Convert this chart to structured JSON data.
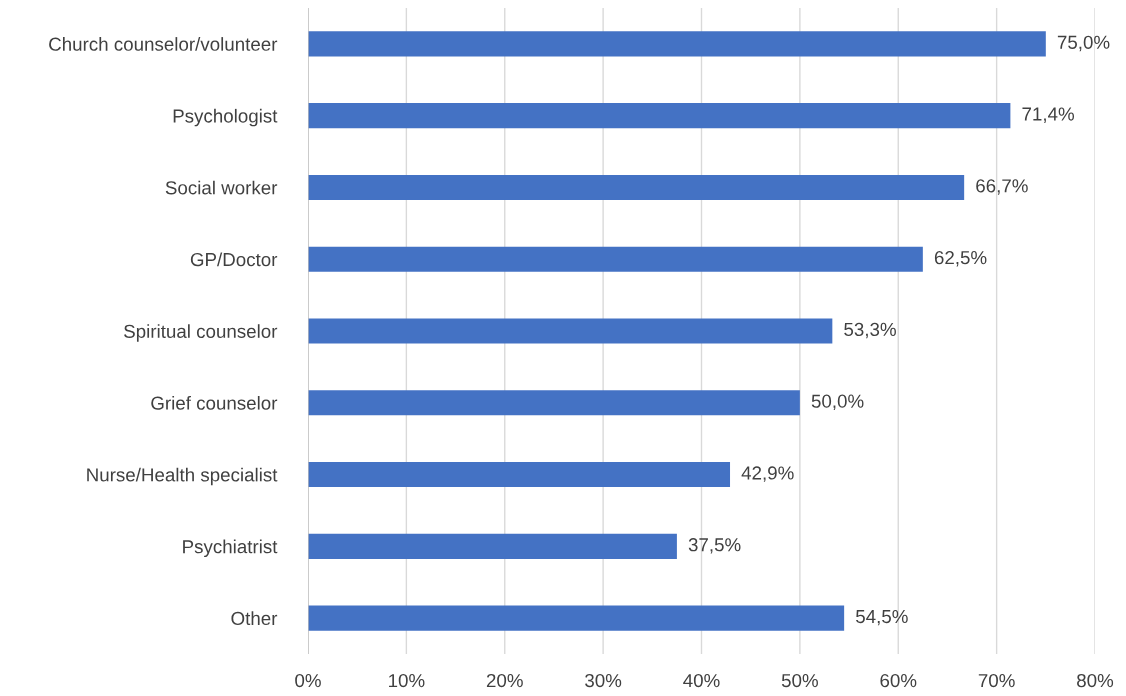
{
  "chart_data": {
    "type": "bar",
    "orientation": "horizontal",
    "categories": [
      "Church counselor/volunteer",
      "Psychologist",
      "Social worker",
      "GP/Doctor",
      "Spiritual counselor",
      "Grief counselor",
      "Nurse/Health specialist",
      "Psychiatrist",
      "Other"
    ],
    "values": [
      75.0,
      71.4,
      66.7,
      62.5,
      53.3,
      50.0,
      42.9,
      37.5,
      54.5
    ],
    "value_labels": [
      "75,0%",
      "71,4%",
      "66,7%",
      "62,5%",
      "53,3%",
      "50,0%",
      "42,9%",
      "37,5%",
      "54,5%"
    ],
    "color": "#4472c4",
    "xlim": [
      0,
      80
    ],
    "xticks": [
      {
        "value": 0,
        "label": "0%"
      },
      {
        "value": 10,
        "label": "10%"
      },
      {
        "value": 20,
        "label": "20%"
      },
      {
        "value": 30,
        "label": "30%"
      },
      {
        "value": 40,
        "label": "40%"
      },
      {
        "value": 50,
        "label": "50%"
      },
      {
        "value": 60,
        "label": "60%"
      },
      {
        "value": 70,
        "label": "70%"
      },
      {
        "value": 80,
        "label": "80%"
      }
    ],
    "grid": "x",
    "legend": false
  }
}
